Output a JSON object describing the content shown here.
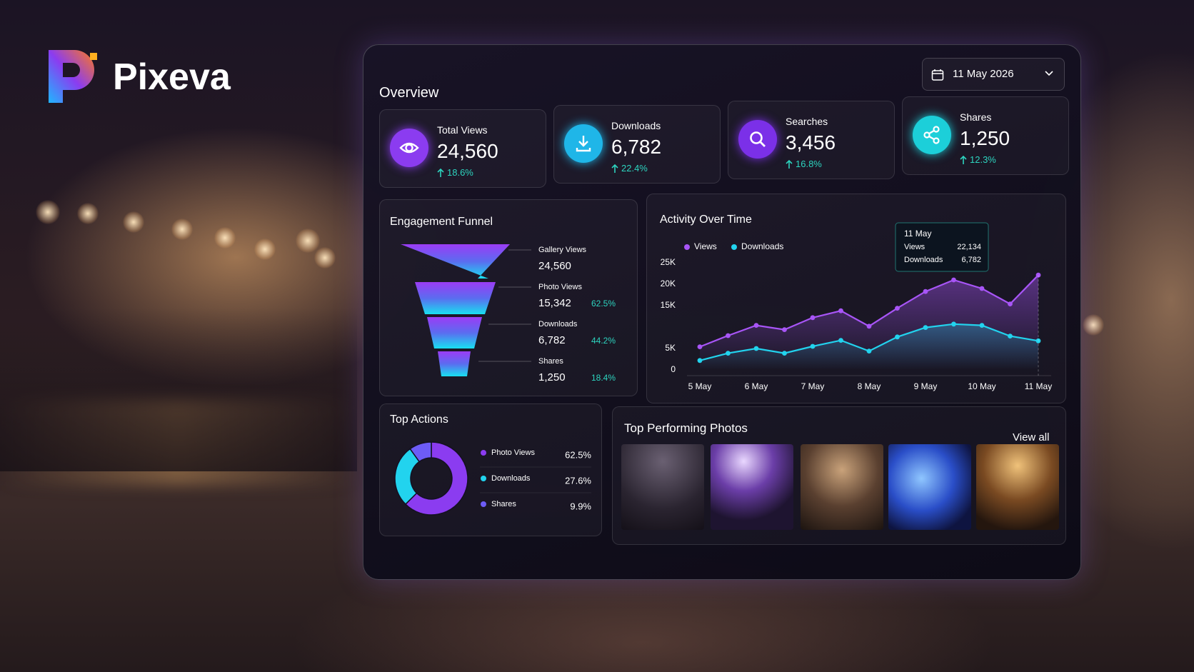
{
  "brand": {
    "name": "Pixeva"
  },
  "overview": {
    "title": "Overview",
    "date": "11 May 2026",
    "kpis": [
      {
        "label": "Total Views",
        "value": "24,560",
        "change": "18.6%"
      },
      {
        "label": "Downloads",
        "value": "6,782",
        "change": "22.4%"
      },
      {
        "label": "Searches",
        "value": "3,456",
        "change": "16.8%"
      },
      {
        "label": "Shares",
        "value": "1,250",
        "change": "12.3%"
      }
    ]
  },
  "funnel": {
    "title": "Engagement Funnel",
    "stages": [
      {
        "label": "Gallery Views",
        "value": "24,560"
      },
      {
        "label": "Photo Views",
        "value": "15,342",
        "rate": "62.5%"
      },
      {
        "label": "Downloads",
        "value": "6,782",
        "rate": "44.2%"
      },
      {
        "label": "Shares",
        "value": "1,250",
        "rate": "18.4%"
      }
    ]
  },
  "chart_data": [
    {
      "type": "line",
      "title": "Activity Over Time",
      "categories": [
        "5 May",
        null,
        "6 May",
        null,
        "7 May",
        null,
        "8 May",
        null,
        "9 May",
        null,
        "10 May",
        null,
        "11 May"
      ],
      "series": [
        {
          "name": "Views",
          "color": "#a855f7",
          "values": [
            5400,
            8000,
            10400,
            9400,
            12200,
            13800,
            10200,
            14400,
            18300,
            21000,
            19000,
            15400,
            22134
          ]
        },
        {
          "name": "Downloads",
          "color": "#22d3ee",
          "values": [
            2200,
            3900,
            5000,
            3900,
            5500,
            6900,
            4400,
            7700,
            9900,
            10700,
            10400,
            7900,
            6782
          ]
        }
      ],
      "ylim": [
        0,
        25000
      ],
      "yticks": [
        0,
        {
          "value": 5000,
          "label": "5K"
        },
        {
          "value": 15000,
          "label": "15K"
        },
        {
          "value": 20000,
          "label": "20K"
        },
        {
          "value": 25000,
          "label": "25K"
        }
      ],
      "grid": false,
      "tooltip": {
        "title": "11 May",
        "rows": [
          [
            "Views",
            "22,134"
          ],
          [
            "Downloads",
            "6,782"
          ]
        ]
      }
    },
    {
      "type": "pie",
      "title": "Top Actions",
      "categories": [
        "Photo Views",
        "Downloads",
        "Shares"
      ],
      "values": [
        62.5,
        27.6,
        9.9
      ],
      "value_labels": [
        "62.5%",
        "27.6%",
        "9.9%"
      ],
      "colors": [
        "#8b3cf0",
        "#22d3ee",
        "#6d5cf6"
      ]
    }
  ],
  "photos": {
    "title": "Top Performing Photos",
    "action": "View all"
  }
}
